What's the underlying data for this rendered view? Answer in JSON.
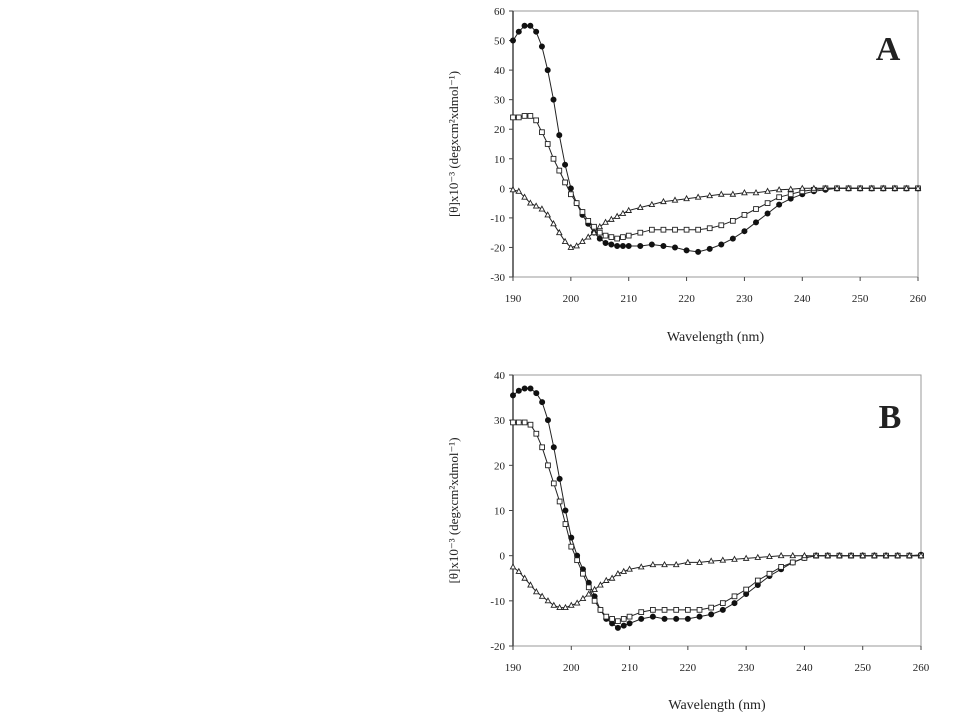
{
  "chart_data": [
    {
      "type": "line",
      "panel_label": "A",
      "xlabel": "Wavelength (nm)",
      "ylabel": "[θ]x10⁻³ (degxcm²xdmol⁻¹)",
      "xlim": [
        190,
        260
      ],
      "ylim": [
        -30,
        60
      ],
      "xticks": [
        190,
        200,
        210,
        220,
        230,
        240,
        250,
        260
      ],
      "yticks": [
        -30,
        -20,
        -10,
        0,
        10,
        20,
        30,
        40,
        50,
        60
      ],
      "grid": false,
      "series": [
        {
          "marker": "filled-circle",
          "x": [
            190,
            191,
            192,
            193,
            194,
            195,
            196,
            197,
            198,
            199,
            200,
            201,
            202,
            203,
            204,
            205,
            206,
            207,
            208,
            209,
            210,
            212,
            214,
            216,
            218,
            220,
            222,
            224,
            226,
            228,
            230,
            232,
            234,
            236,
            238,
            240,
            242,
            244,
            246,
            248,
            250,
            252,
            254,
            256,
            258,
            260
          ],
          "y": [
            50,
            53,
            55,
            55,
            53,
            48,
            40,
            30,
            18,
            8,
            0,
            -5,
            -9,
            -12,
            -15,
            -17,
            -18.5,
            -19,
            -19.5,
            -19.5,
            -19.5,
            -19.5,
            -19,
            -19.5,
            -20,
            -21,
            -21.5,
            -20.5,
            -19,
            -17,
            -14.5,
            -11.5,
            -8.5,
            -5.5,
            -3.5,
            -2,
            -1,
            -0.5,
            0,
            0,
            0,
            0,
            0,
            0,
            0,
            0
          ]
        },
        {
          "marker": "open-square",
          "x": [
            190,
            191,
            192,
            193,
            194,
            195,
            196,
            197,
            198,
            199,
            200,
            201,
            202,
            203,
            204,
            205,
            206,
            207,
            208,
            209,
            210,
            212,
            214,
            216,
            218,
            220,
            222,
            224,
            226,
            228,
            230,
            232,
            234,
            236,
            238,
            240,
            242,
            244,
            246,
            248,
            250,
            252,
            254,
            256,
            258,
            260
          ],
          "y": [
            24,
            24,
            24.5,
            24.5,
            23,
            19,
            15,
            10,
            6,
            2,
            -2,
            -5,
            -8,
            -11,
            -13,
            -15,
            -16,
            -16.5,
            -17,
            -16.5,
            -16,
            -15,
            -14,
            -14,
            -14,
            -14,
            -14,
            -13.5,
            -12.5,
            -11,
            -9,
            -7,
            -5,
            -3,
            -2,
            -1,
            -0.5,
            0,
            0,
            0,
            0,
            0,
            0,
            0,
            0,
            0
          ]
        },
        {
          "marker": "open-triangle",
          "x": [
            190,
            191,
            192,
            193,
            194,
            195,
            196,
            197,
            198,
            199,
            200,
            201,
            202,
            203,
            204,
            205,
            206,
            207,
            208,
            209,
            210,
            212,
            214,
            216,
            218,
            220,
            222,
            224,
            226,
            228,
            230,
            232,
            234,
            236,
            238,
            240,
            242,
            244,
            246,
            248,
            250,
            252,
            254,
            256,
            258,
            260
          ],
          "y": [
            -0.5,
            -1,
            -3,
            -5,
            -6,
            -7,
            -9,
            -12,
            -15,
            -18,
            -20,
            -19.5,
            -18,
            -16.5,
            -15,
            -13,
            -11.5,
            -10.5,
            -9.5,
            -8.5,
            -7.5,
            -6.5,
            -5.5,
            -4.5,
            -4,
            -3.5,
            -3,
            -2.5,
            -2,
            -2,
            -1.5,
            -1.5,
            -1,
            -0.5,
            -0.3,
            0,
            0,
            0,
            0,
            0,
            0,
            0,
            0,
            0,
            0,
            0
          ]
        }
      ]
    },
    {
      "type": "line",
      "panel_label": "B",
      "xlabel": "Wavelength (nm)",
      "ylabel": "[θ]x10⁻³ (degxcm²xdmol⁻¹)",
      "xlim": [
        190,
        260
      ],
      "ylim": [
        -20,
        40
      ],
      "xticks": [
        190,
        200,
        210,
        220,
        230,
        240,
        250,
        260
      ],
      "yticks": [
        -20,
        -10,
        0,
        10,
        20,
        30,
        40
      ],
      "grid": false,
      "series": [
        {
          "marker": "filled-circle",
          "x": [
            190,
            191,
            192,
            193,
            194,
            195,
            196,
            197,
            198,
            199,
            200,
            201,
            202,
            203,
            204,
            205,
            206,
            207,
            208,
            209,
            210,
            212,
            214,
            216,
            218,
            220,
            222,
            224,
            226,
            228,
            230,
            232,
            234,
            236,
            238,
            240,
            242,
            244,
            246,
            248,
            250,
            252,
            254,
            256,
            258,
            260
          ],
          "y": [
            35.5,
            36.5,
            37,
            37,
            36,
            34,
            30,
            24,
            17,
            10,
            4,
            0,
            -3,
            -6,
            -9,
            -12,
            -14,
            -15,
            -16,
            -15.5,
            -15,
            -14,
            -13.5,
            -14,
            -14,
            -14,
            -13.5,
            -13,
            -12,
            -10.5,
            -8.5,
            -6.5,
            -4.5,
            -3,
            -1.5,
            -0.5,
            0,
            0,
            0,
            0,
            0,
            0,
            0,
            0,
            0,
            0.2
          ]
        },
        {
          "marker": "open-square",
          "x": [
            190,
            191,
            192,
            193,
            194,
            195,
            196,
            197,
            198,
            199,
            200,
            201,
            202,
            203,
            204,
            205,
            206,
            207,
            208,
            209,
            210,
            212,
            214,
            216,
            218,
            220,
            222,
            224,
            226,
            228,
            230,
            232,
            234,
            236,
            238,
            240,
            242,
            244,
            246,
            248,
            250,
            252,
            254,
            256,
            258,
            260
          ],
          "y": [
            29.5,
            29.5,
            29.5,
            29,
            27,
            24,
            20,
            16,
            12,
            7,
            2,
            -1,
            -4,
            -7,
            -10,
            -12,
            -13.5,
            -14,
            -14.5,
            -14,
            -13.5,
            -12.5,
            -12,
            -12,
            -12,
            -12,
            -12,
            -11.5,
            -10.5,
            -9,
            -7.5,
            -5.5,
            -4,
            -2.5,
            -1.5,
            -0.5,
            0,
            0,
            0,
            0,
            0,
            0,
            0,
            0,
            0,
            0
          ]
        },
        {
          "marker": "open-triangle",
          "x": [
            190,
            191,
            192,
            193,
            194,
            195,
            196,
            197,
            198,
            199,
            200,
            201,
            202,
            203,
            204,
            205,
            206,
            207,
            208,
            209,
            210,
            212,
            214,
            216,
            218,
            220,
            222,
            224,
            226,
            228,
            230,
            232,
            234,
            236,
            238,
            240,
            242,
            244,
            246,
            248,
            250,
            252,
            254,
            256,
            258,
            260
          ],
          "y": [
            -2.5,
            -3.5,
            -5,
            -6.5,
            -8,
            -9,
            -10,
            -11,
            -11.5,
            -11.5,
            -11,
            -10.5,
            -9.5,
            -8.5,
            -7.5,
            -6.5,
            -5.5,
            -5,
            -4,
            -3.5,
            -3,
            -2.5,
            -2,
            -2,
            -2,
            -1.5,
            -1.5,
            -1.2,
            -1,
            -0.8,
            -0.6,
            -0.4,
            -0.2,
            0,
            0,
            0,
            0,
            0,
            0,
            0,
            0,
            0,
            0,
            0,
            0,
            0
          ]
        }
      ]
    }
  ]
}
